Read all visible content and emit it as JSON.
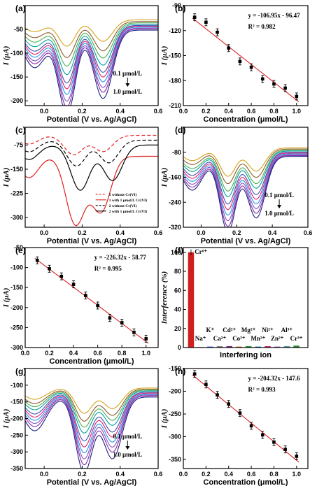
{
  "panels": [
    {
      "id": "a",
      "label": "(a)",
      "type": "line",
      "xlabel": "Potential (V vs. Ag/AgCl)",
      "ylabel": "I (μA)",
      "xlim": [
        -0.1,
        0.6
      ],
      "ylim": [
        -210,
        0
      ],
      "xticks": [
        "0.0",
        "0.2",
        "0.4",
        "0.6"
      ],
      "yticks": [
        "-50",
        "-100",
        "-150",
        "-200"
      ],
      "curve_model": {
        "baseline": -20,
        "peaks": [
          {
            "x": 0.12
          },
          {
            "x": 0.31
          }
        ],
        "levels": [
          -75,
          -95,
          -110,
          -125,
          -140,
          -150,
          -160,
          -172,
          -182,
          -195
        ]
      },
      "annotations": [
        "0.1 μmol/L",
        "1.0 μmol/L"
      ]
    },
    {
      "id": "b",
      "label": "(b)",
      "type": "scatter",
      "xlabel": "Concentration (μmol/L)",
      "ylabel": "I (μA)",
      "xlim": [
        0,
        1.1
      ],
      "ylim": [
        -210,
        -90
      ],
      "xticks": [
        "0.0",
        "0.2",
        "0.4",
        "0.6",
        "0.8",
        "1.0"
      ],
      "yticks": [
        "-90",
        "-120",
        "-150",
        "-180",
        "-210"
      ],
      "x": [
        0.1,
        0.2,
        0.3,
        0.4,
        0.5,
        0.6,
        0.7,
        0.8,
        0.9,
        1.0
      ],
      "y": [
        -104,
        -110,
        -122,
        -141,
        -157,
        -164,
        -178,
        -184,
        -189,
        -199
      ],
      "fit": {
        "slope": -106.95,
        "intercept": -96.47
      },
      "equation": "y = -106.95x - 96.47",
      "r2": "R² = 0.982"
    },
    {
      "id": "c",
      "label": "(c)",
      "type": "line",
      "xlabel": "Potential (V vs. Ag/AgCl)",
      "ylabel": "I (μA)",
      "xlim": [
        -0.1,
        0.6
      ],
      "ylim": [
        -330,
        -20
      ],
      "xticks": [
        "0.0",
        "0.2",
        "0.4",
        "0.6"
      ],
      "yticks": [
        "-75",
        "-150",
        "-225",
        "-300"
      ],
      "legend": [
        "1 without Cr(VI)",
        "1 with 1 μmol/L Cr(VI)",
        "2 without Cr(VI)",
        "2 with 1 μmol/L Cr(VI)"
      ]
    },
    {
      "id": "d",
      "label": "(d)",
      "type": "line",
      "xlabel": "Potential (V vs. Ag/AgCl)",
      "ylabel": "I (μA)",
      "xlim": [
        -0.1,
        0.6
      ],
      "ylim": [
        -320,
        0
      ],
      "xticks": [
        "0.0",
        "0.2",
        "0.4",
        "0.6"
      ],
      "yticks": [
        "-80",
        "-160",
        "-240",
        "-320"
      ],
      "curve_model": {
        "baseline": -50,
        "peaks": [
          {
            "x": 0.15
          },
          {
            "x": 0.31
          }
        ],
        "levels": [
          -140,
          -160,
          -180,
          -195,
          -215,
          -230,
          -245,
          -260,
          -275,
          -290
        ]
      },
      "annotations": [
        "0.1 μmol/L",
        "1.0 μmol/L"
      ]
    },
    {
      "id": "e",
      "label": "(e)",
      "type": "scatter",
      "xlabel": "Concentration (μmol/L)",
      "ylabel": "I (μA)",
      "xlim": [
        0,
        1.1
      ],
      "ylim": [
        -300,
        -50
      ],
      "xticks": [
        "0.0",
        "0.2",
        "0.4",
        "0.6",
        "0.8",
        "1.0"
      ],
      "yticks": [
        "-50",
        "-100",
        "-150",
        "-200",
        "-250",
        "-300"
      ],
      "x": [
        0.1,
        0.2,
        0.3,
        0.4,
        0.5,
        0.6,
        0.7,
        0.8,
        0.9,
        1.0
      ],
      "y": [
        -82,
        -103,
        -122,
        -142,
        -170,
        -195,
        -226,
        -238,
        -262,
        -278
      ],
      "fit": {
        "slope": -226.32,
        "intercept": -58.77
      },
      "equation": "y = -226.32x - 58.77",
      "r2": "R² = 0.995"
    },
    {
      "id": "f",
      "label": "(f)",
      "type": "bar",
      "xlabel": "Interfering ion",
      "ylabel": "Interference (%)",
      "ylim": [
        0,
        105
      ],
      "yticks": [
        "0",
        "20",
        "40",
        "60",
        "80",
        "100"
      ],
      "categories": [
        "Cr⁶⁺",
        "Na⁺",
        "K⁺",
        "Ca²⁺",
        "Cd²⁺",
        "Co²⁺",
        "Mg²⁺",
        "Mn²⁺",
        "Ni²⁺",
        "Zn²⁺",
        "Al³⁺",
        "Cr³⁺"
      ],
      "values": [
        100,
        0.5,
        1,
        1.5,
        1.5,
        1,
        1.5,
        1,
        1.5,
        1,
        1.5,
        2
      ],
      "colors": [
        "#d11e1e",
        "#777777",
        "#2255cc",
        "#888888",
        "#7b2d8e",
        "#bb6600",
        "#2b9a2b",
        "#1166bb",
        "#cc3366",
        "#8a4fb0",
        "#5599aa",
        "#228833"
      ]
    },
    {
      "id": "g",
      "label": "(g)",
      "type": "line",
      "xlabel": "Potential (V vs. Ag/AgCl)",
      "ylabel": "I (μA)",
      "xlim": [
        -0.1,
        0.6
      ],
      "ylim": [
        -350,
        -50
      ],
      "xticks": [
        "0.0",
        "0.2",
        "0.4",
        "0.6"
      ],
      "yticks": [
        "-100",
        "-150",
        "-200",
        "-250",
        "-300",
        "-350"
      ],
      "curve_model": {
        "baseline": -95,
        "peaks": [
          {
            "x": 0.21
          },
          {
            "x": 0.36
          }
        ],
        "levels": [
          -170,
          -190,
          -205,
          -220,
          -240,
          -255,
          -270,
          -285,
          -300,
          -320
        ]
      },
      "annotations": [
        "0.1 μmol/L",
        "1.0 μmol/L"
      ]
    },
    {
      "id": "h",
      "label": "(h)",
      "type": "scatter",
      "xlabel": "Concentration (μmol/L)",
      "ylabel": "I (μA)",
      "xlim": [
        0,
        1.1
      ],
      "ylim": [
        -370,
        -150
      ],
      "xticks": [
        "0.0",
        "0.2",
        "0.4",
        "0.6",
        "0.8",
        "1.0"
      ],
      "yticks": [
        "-150",
        "-200",
        "-250",
        "-300",
        "-350"
      ],
      "x": [
        0.1,
        0.2,
        0.3,
        0.4,
        0.5,
        0.6,
        0.7,
        0.8,
        0.9,
        1.0
      ],
      "y": [
        -162,
        -185,
        -208,
        -228,
        -248,
        -276,
        -296,
        -312,
        -328,
        -343
      ],
      "fit": {
        "slope": -204.32,
        "intercept": -147.6
      },
      "equation": "y = -204.32x - 147.6",
      "r2": "R² = 0.993"
    }
  ],
  "palette": [
    "#d4a017",
    "#8b5a2b",
    "#4caf50",
    "#00a0a0",
    "#3f51b5",
    "#e91e63",
    "#2196f3",
    "#7e57c2",
    "#8e24aa",
    "#1a237e"
  ]
}
